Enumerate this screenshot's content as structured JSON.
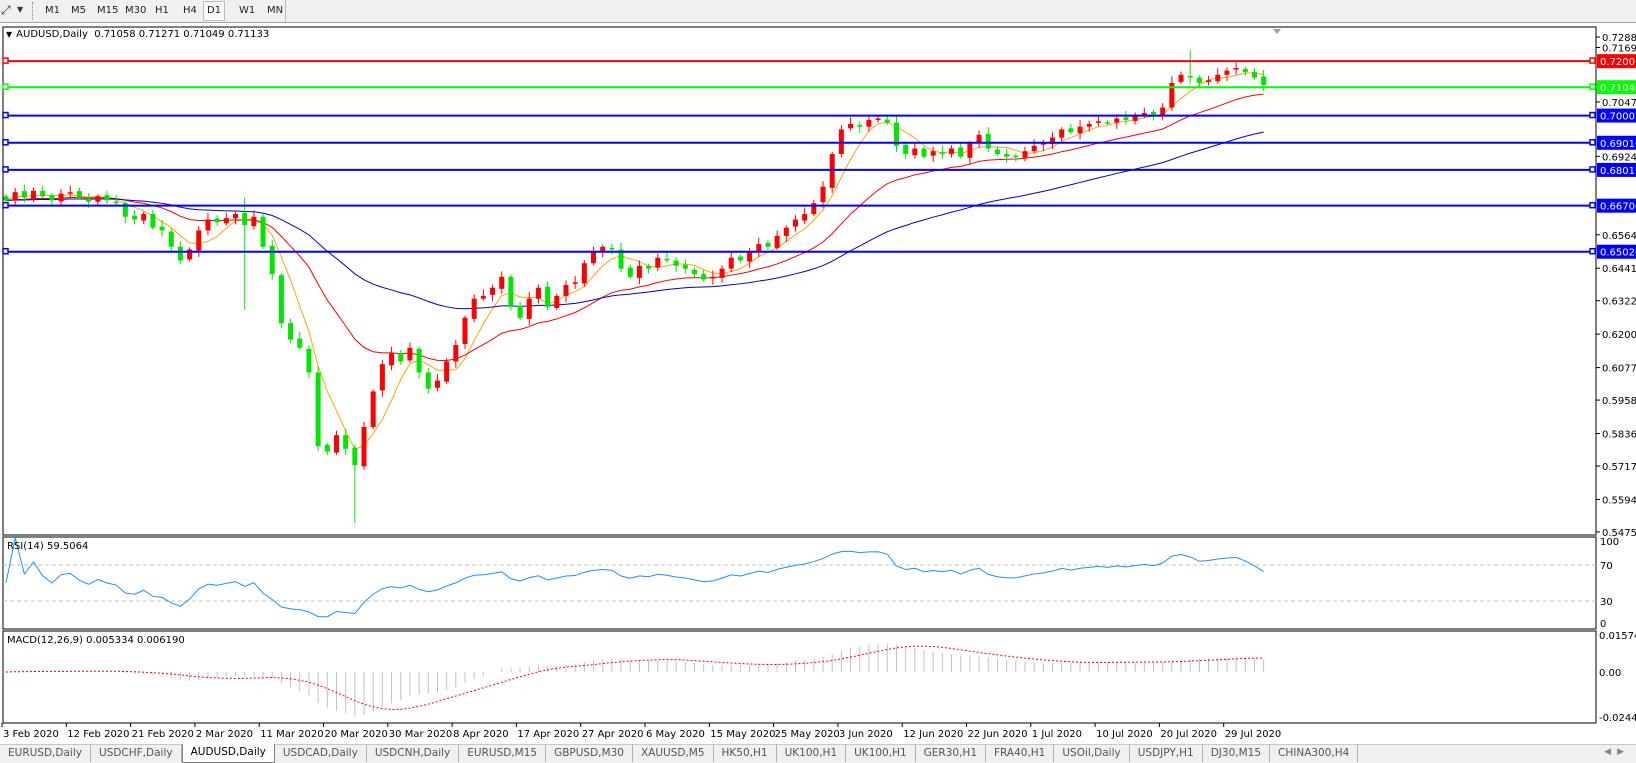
{
  "toolbar": {
    "timeframes": [
      "M1",
      "M5",
      "M15",
      "M30",
      "H1",
      "H4",
      "D1",
      "W1",
      "MN"
    ],
    "active_timeframe": "D1",
    "tool_icon": "crosshair-cursor-icon"
  },
  "chart": {
    "symbol_label": "AUDUSD,Daily",
    "ohlc": "0.71058 0.71271 0.71049 0.71133"
  },
  "price_axis": {
    "ticks": [
      "0.72885",
      "0.71695",
      "0.70470",
      "0.69245",
      "0.65640",
      "0.64415",
      "0.63225",
      "0.62000",
      "0.60775",
      "0.59585",
      "0.58360",
      "0.57170",
      "0.55945",
      "0.54755"
    ]
  },
  "levels": [
    {
      "price": "0.72001",
      "color": "#FF0000"
    },
    {
      "price": "0.71046",
      "color": "#00FF00"
    },
    {
      "price": "0.70007",
      "color": "#0000FF"
    },
    {
      "price": "0.69010",
      "color": "#0000FF"
    },
    {
      "price": "0.68017",
      "color": "#0000FF"
    },
    {
      "price": "0.66706",
      "color": "#0000FF"
    },
    {
      "price": "0.65020",
      "color": "#0000FF"
    }
  ],
  "rsi": {
    "label": "RSI(14) 59.5064",
    "ticks": [
      "100",
      "70",
      "30",
      "0"
    ],
    "color": "#1E90FF"
  },
  "macd": {
    "label": "MACD(12,26,9) 0.005334 0.006190",
    "ticks": [
      "0.015741",
      "0.00",
      "-0.02441"
    ],
    "histogram_color": "#C0C0C0",
    "signal_color": "#FF0000"
  },
  "dates": [
    "3 Feb 2020",
    "12 Feb 2020",
    "21 Feb 2020",
    "2 Mar 2020",
    "11 Mar 2020",
    "20 Mar 2020",
    "30 Mar 2020",
    "8 Apr 2020",
    "17 Apr 2020",
    "27 Apr 2020",
    "6 May 2020",
    "15 May 2020",
    "25 May 2020",
    "3 Jun 2020",
    "12 Jun 2020",
    "22 Jun 2020",
    "1 Jul 2020",
    "10 Jul 2020",
    "20 Jul 2020",
    "29 Jul 2020"
  ],
  "tabs": [
    "EURUSD,Daily",
    "USDCHF,Daily",
    "AUDUSD,Daily",
    "USDCAD,Daily",
    "USDCNH,Daily",
    "EURUSD,M15",
    "GBPUSD,M30",
    "XAUUSD,M5",
    "HK50,H1",
    "UK100,H1",
    "UK100,H1",
    "GER30,H1",
    "FRA40,H1",
    "USOil,Daily",
    "USDJPY,H1",
    "DJ30,M15",
    "CHINA300,H4"
  ],
  "active_tab": 2,
  "chart_data": {
    "type": "candlestick",
    "symbol": "AUDUSD",
    "timeframe": "Daily",
    "x_start": "3 Feb 2020",
    "ylim": [
      0.54755,
      0.72885
    ],
    "bull_color": "#FF0000",
    "bear_color": "#00E600",
    "moving_average_colors": [
      "#FFA500",
      "#FF0000",
      "#0000CD"
    ],
    "closes": [
      0.669,
      0.672,
      0.67,
      0.6725,
      0.6705,
      0.669,
      0.6715,
      0.672,
      0.67,
      0.6685,
      0.6705,
      0.669,
      0.668,
      0.663,
      0.662,
      0.664,
      0.659,
      0.658,
      0.652,
      0.647,
      0.651,
      0.658,
      0.662,
      0.661,
      0.6625,
      0.664,
      0.66,
      0.663,
      0.652,
      0.642,
      0.624,
      0.618,
      0.615,
      0.606,
      0.579,
      0.577,
      0.583,
      0.578,
      0.572,
      0.586,
      0.599,
      0.609,
      0.613,
      0.61,
      0.615,
      0.606,
      0.6,
      0.603,
      0.61,
      0.616,
      0.626,
      0.633,
      0.634,
      0.637,
      0.641,
      0.63,
      0.626,
      0.633,
      0.637,
      0.63,
      0.634,
      0.638,
      0.639,
      0.646,
      0.65,
      0.652,
      0.651,
      0.644,
      0.641,
      0.645,
      0.644,
      0.648,
      0.647,
      0.645,
      0.644,
      0.642,
      0.64,
      0.641,
      0.644,
      0.648,
      0.647,
      0.65,
      0.653,
      0.652,
      0.656,
      0.659,
      0.662,
      0.664,
      0.668,
      0.674,
      0.686,
      0.695,
      0.697,
      0.696,
      0.6985,
      0.699,
      0.6975,
      0.689,
      0.686,
      0.688,
      0.685,
      0.687,
      0.686,
      0.688,
      0.685,
      0.69,
      0.693,
      0.688,
      0.686,
      0.685,
      0.685,
      0.687,
      0.689,
      0.69,
      0.692,
      0.695,
      0.694,
      0.696,
      0.697,
      0.698,
      0.6975,
      0.699,
      0.6985,
      0.7,
      0.701,
      0.7005,
      0.703,
      0.712,
      0.715,
      0.714,
      0.712,
      0.713,
      0.715,
      0.7165,
      0.7175,
      0.716,
      0.714,
      0.7113
    ]
  }
}
